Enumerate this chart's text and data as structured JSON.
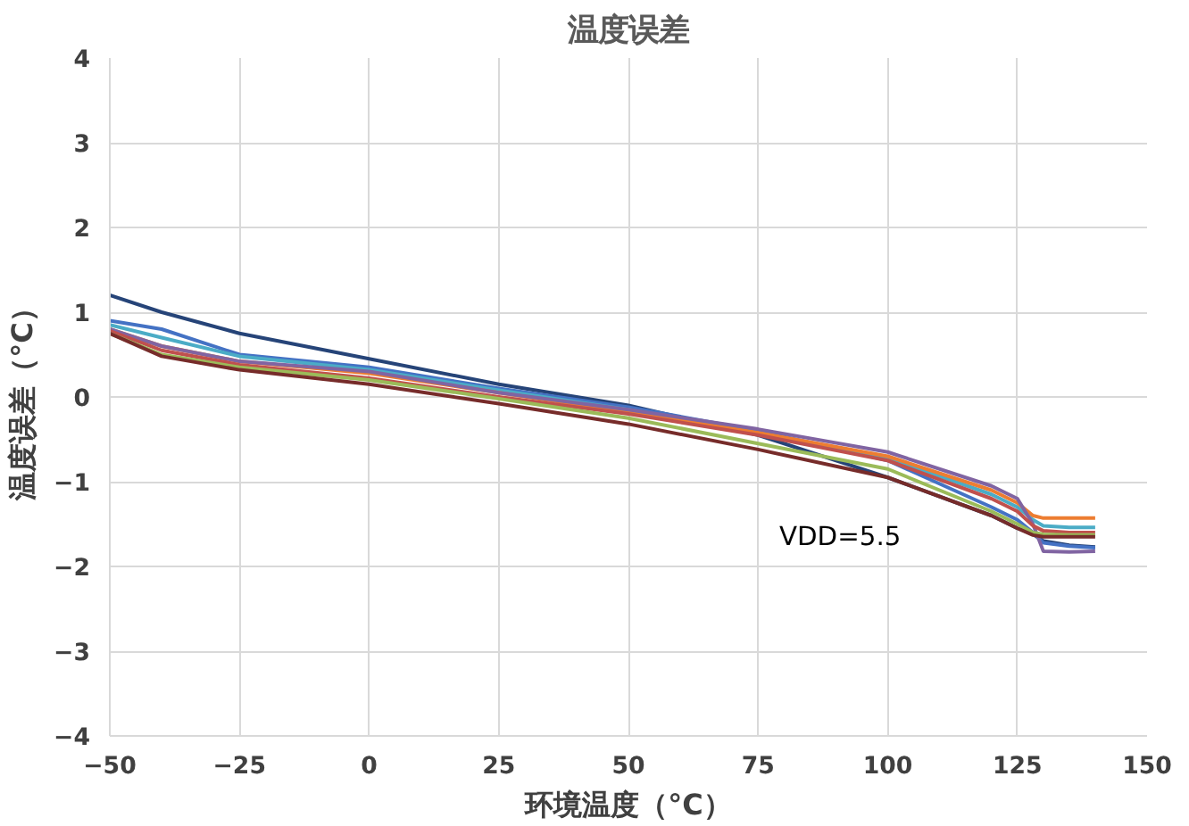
{
  "chart_data": {
    "type": "line",
    "title": "温度误差",
    "xlabel": "环境温度（°C）",
    "ylabel": "温度误差（°C）",
    "x": [
      -50,
      -40,
      -25,
      0,
      25,
      50,
      75,
      100,
      120,
      125,
      128,
      130,
      135,
      140
    ],
    "series": [
      {
        "color": "#264478",
        "values": [
          1.2,
          1.0,
          0.75,
          0.45,
          0.15,
          -0.1,
          -0.45,
          -0.95,
          -1.4,
          -1.55,
          -1.62,
          -1.7,
          -1.75,
          -1.77
        ]
      },
      {
        "color": "#4472c4",
        "values": [
          0.9,
          0.8,
          0.5,
          0.35,
          0.1,
          -0.12,
          -0.4,
          -0.75,
          -1.3,
          -1.45,
          -1.6,
          -1.72,
          -1.76,
          -1.78
        ]
      },
      {
        "color": "#4bacc6",
        "values": [
          0.85,
          0.7,
          0.48,
          0.32,
          0.08,
          -0.15,
          -0.42,
          -0.72,
          -1.15,
          -1.3,
          -1.45,
          -1.52,
          -1.54,
          -1.54
        ]
      },
      {
        "color": "#ed7d31",
        "values": [
          0.8,
          0.6,
          0.42,
          0.28,
          0.05,
          -0.18,
          -0.42,
          -0.7,
          -1.1,
          -1.25,
          -1.4,
          -1.43,
          -1.43,
          -1.43
        ]
      },
      {
        "color": "#8064a2",
        "values": [
          0.8,
          0.6,
          0.42,
          0.3,
          0.05,
          -0.15,
          -0.38,
          -0.65,
          -1.05,
          -1.2,
          -1.5,
          -1.82,
          -1.83,
          -1.82
        ]
      },
      {
        "color": "#c0504d",
        "values": [
          0.78,
          0.55,
          0.38,
          0.22,
          0.0,
          -0.2,
          -0.45,
          -0.75,
          -1.2,
          -1.35,
          -1.52,
          -1.58,
          -1.6,
          -1.6
        ]
      },
      {
        "color": "#9bbb59",
        "values": [
          0.75,
          0.5,
          0.35,
          0.2,
          -0.02,
          -0.25,
          -0.55,
          -0.85,
          -1.35,
          -1.5,
          -1.6,
          -1.62,
          -1.63,
          -1.63
        ]
      },
      {
        "color": "#772c2a",
        "values": [
          0.75,
          0.48,
          0.32,
          0.15,
          -0.08,
          -0.32,
          -0.62,
          -0.95,
          -1.4,
          -1.55,
          -1.63,
          -1.65,
          -1.65,
          -1.65
        ]
      }
    ],
    "xlim": [
      -50,
      150
    ],
    "xticks": [
      -50,
      -25,
      0,
      25,
      50,
      75,
      100,
      125,
      150
    ],
    "ylim": [
      -4,
      4
    ],
    "yticks": [
      -4,
      -3,
      -2,
      -1,
      0,
      1,
      2,
      3,
      4
    ],
    "grid": true,
    "annotations": [
      "VDD=5.5"
    ]
  }
}
